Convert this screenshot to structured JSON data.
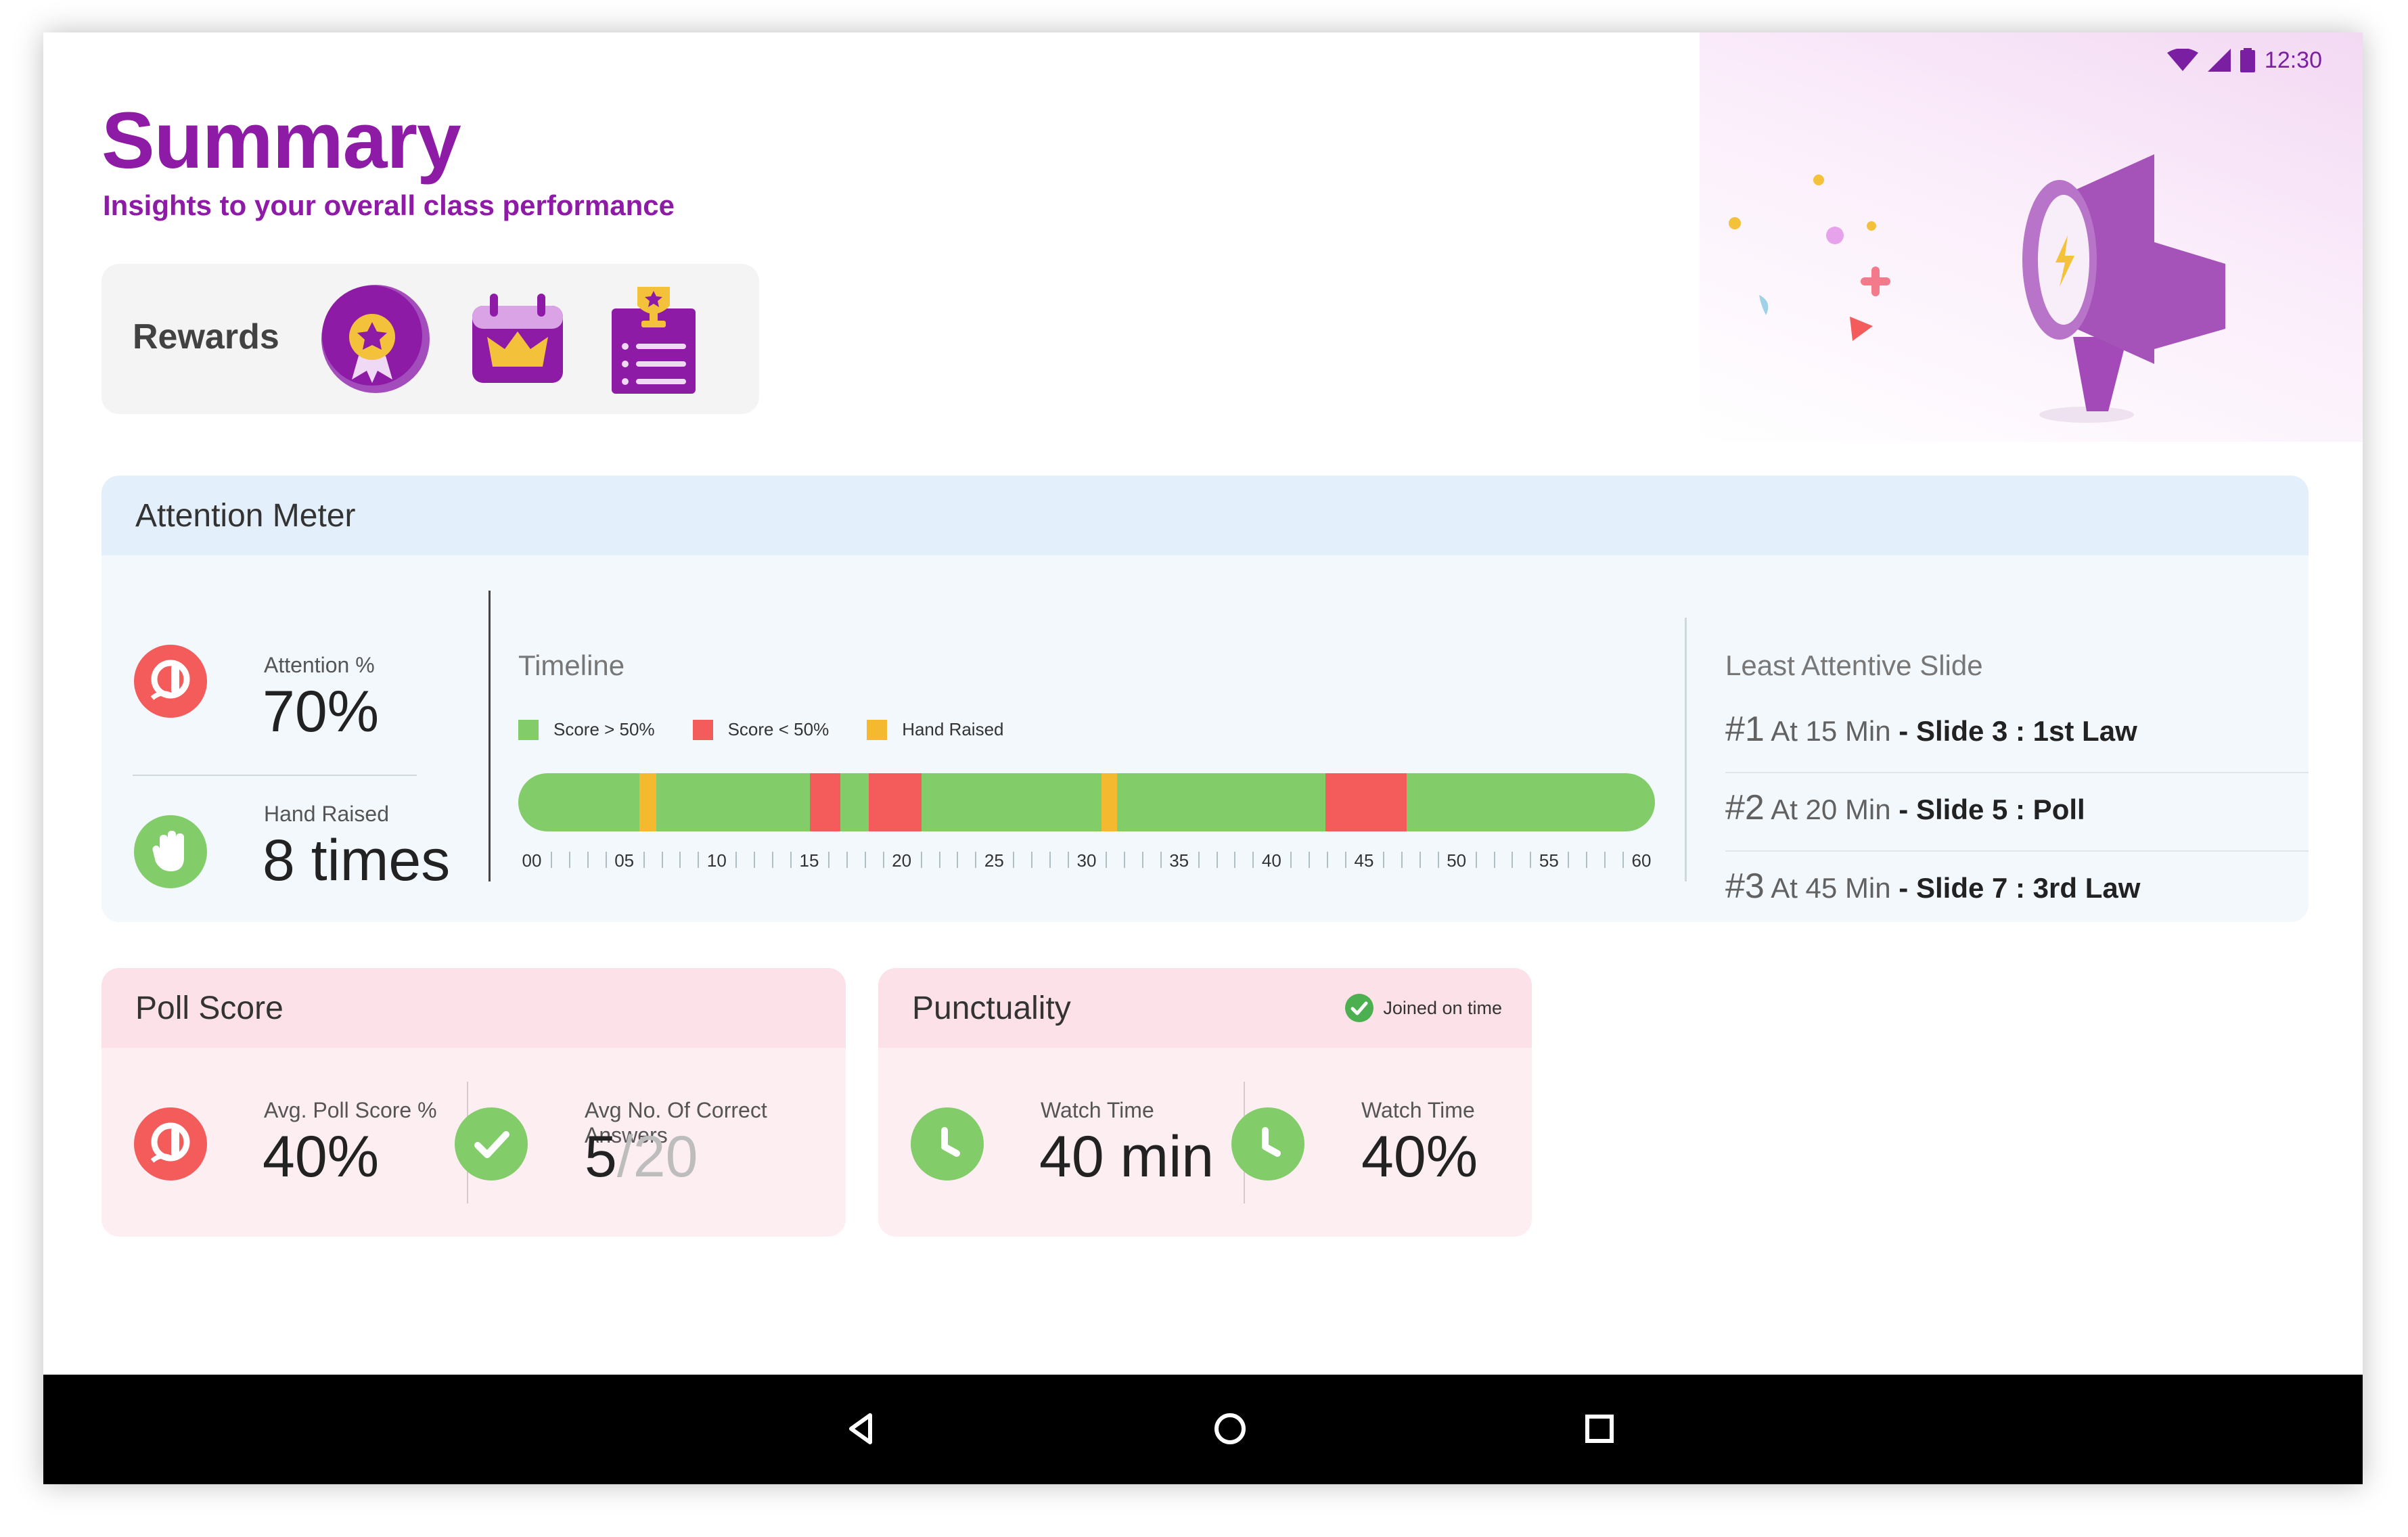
{
  "status_bar": {
    "time": "12:30"
  },
  "header": {
    "title": "Summary",
    "subtitle": "Insights to your overall class performance"
  },
  "rewards": {
    "label": "Rewards",
    "icons": [
      "medal-badge-icon",
      "crown-calendar-icon",
      "trophy-clipboard-icon"
    ]
  },
  "attention_meter": {
    "title": "Attention Meter",
    "attention_label": "Attention %",
    "attention_value": "70%",
    "hand_raised_label": "Hand Raised",
    "hand_raised_value": "8 times",
    "timeline": {
      "title": "Timeline",
      "legend": [
        {
          "label": "Score > 50%",
          "color": "#82cc6a"
        },
        {
          "label": "Score < 50%",
          "color": "#f45b5b"
        },
        {
          "label": "Hand Raised",
          "color": "#f4b92f"
        }
      ],
      "ticks": [
        "00",
        "05",
        "10",
        "15",
        "20",
        "25",
        "30",
        "35",
        "40",
        "45",
        "50",
        "55",
        "60"
      ],
      "segments": [
        {
          "start": 6.4,
          "end": 7.3,
          "type": "hand"
        },
        {
          "start": 15.4,
          "end": 17.0,
          "type": "low"
        },
        {
          "start": 18.5,
          "end": 21.3,
          "type": "low"
        },
        {
          "start": 30.8,
          "end": 31.6,
          "type": "hand"
        },
        {
          "start": 42.6,
          "end": 46.9,
          "type": "low"
        }
      ],
      "range": [
        0,
        60
      ]
    },
    "least_attentive": {
      "title": "Least Attentive Slide",
      "items": [
        {
          "rank": "#1",
          "time": "At 15 Min",
          "sep": "-",
          "slide": "Slide 3 : 1st Law"
        },
        {
          "rank": "#2",
          "time": "At 20 Min",
          "sep": "-",
          "slide": "Slide 5 : Poll"
        },
        {
          "rank": "#3",
          "time": "At 45 Min",
          "sep": "-",
          "slide": "Slide 7 : 3rd Law"
        }
      ]
    }
  },
  "poll_score": {
    "title": "Poll Score",
    "avg_label": "Avg. Poll Score %",
    "avg_value": "40%",
    "correct_label": "Avg No. Of Correct Answers",
    "correct_value": "5",
    "correct_total": "/20"
  },
  "punctuality": {
    "title": "Punctuality",
    "badge": "Joined on time",
    "watch_time_label": "Watch Time",
    "watch_time_value": "40 min",
    "watch_pct_label": "Watch Time",
    "watch_pct_value": "40%"
  },
  "colors": {
    "brand": "#8e1ba6",
    "green": "#82cc6a",
    "red": "#f45b5b",
    "amber": "#f4b92f"
  }
}
